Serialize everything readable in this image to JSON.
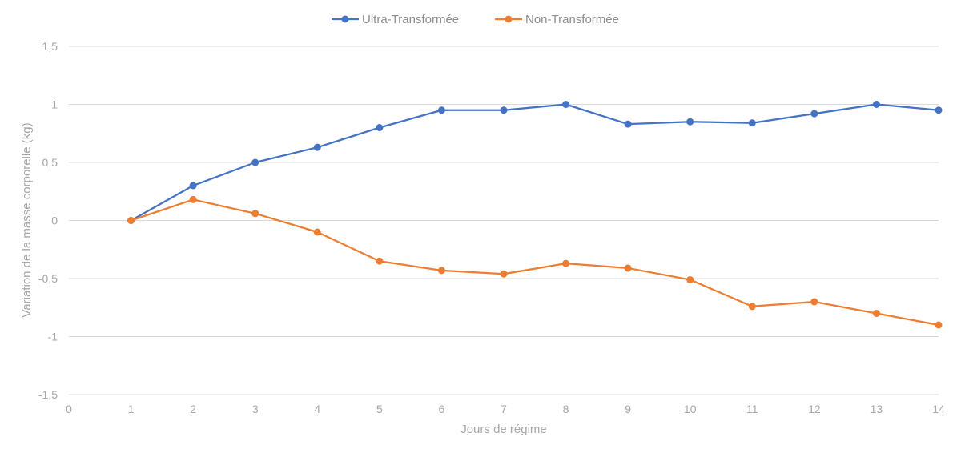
{
  "chart_data": {
    "type": "line",
    "title": "",
    "xlabel": "Jours de régime",
    "ylabel": "Variation de la masse corporelle (kg)",
    "xlim": [
      0,
      14
    ],
    "ylim": [
      -1.5,
      1.5
    ],
    "x_ticks": [
      "0",
      "1",
      "2",
      "3",
      "4",
      "5",
      "6",
      "7",
      "8",
      "9",
      "10",
      "11",
      "12",
      "13",
      "14"
    ],
    "y_ticks": [
      {
        "value": 1.5,
        "label": "1,5"
      },
      {
        "value": 1,
        "label": "1"
      },
      {
        "value": 0.5,
        "label": "0,5"
      },
      {
        "value": 0,
        "label": "0"
      },
      {
        "value": -0.5,
        "label": "-0,5"
      },
      {
        "value": -1,
        "label": "-1"
      },
      {
        "value": -1.5,
        "label": "-1,5"
      }
    ],
    "grid": true,
    "legend_position": "top-center",
    "x": [
      1,
      2,
      3,
      4,
      5,
      6,
      7,
      8,
      9,
      10,
      11,
      12,
      13,
      14
    ],
    "series": [
      {
        "name": "Ultra-Transformée",
        "color": "#4472c4",
        "values": [
          0,
          0.3,
          0.5,
          0.63,
          0.8,
          0.95,
          0.95,
          1.0,
          0.83,
          0.85,
          0.84,
          0.92,
          1.0,
          0.95
        ]
      },
      {
        "name": "Non-Transformée",
        "color": "#ed7d31",
        "values": [
          0,
          0.18,
          0.06,
          -0.1,
          -0.35,
          -0.43,
          -0.46,
          -0.37,
          -0.41,
          -0.51,
          -0.74,
          -0.7,
          -0.8,
          -0.9
        ]
      }
    ]
  }
}
